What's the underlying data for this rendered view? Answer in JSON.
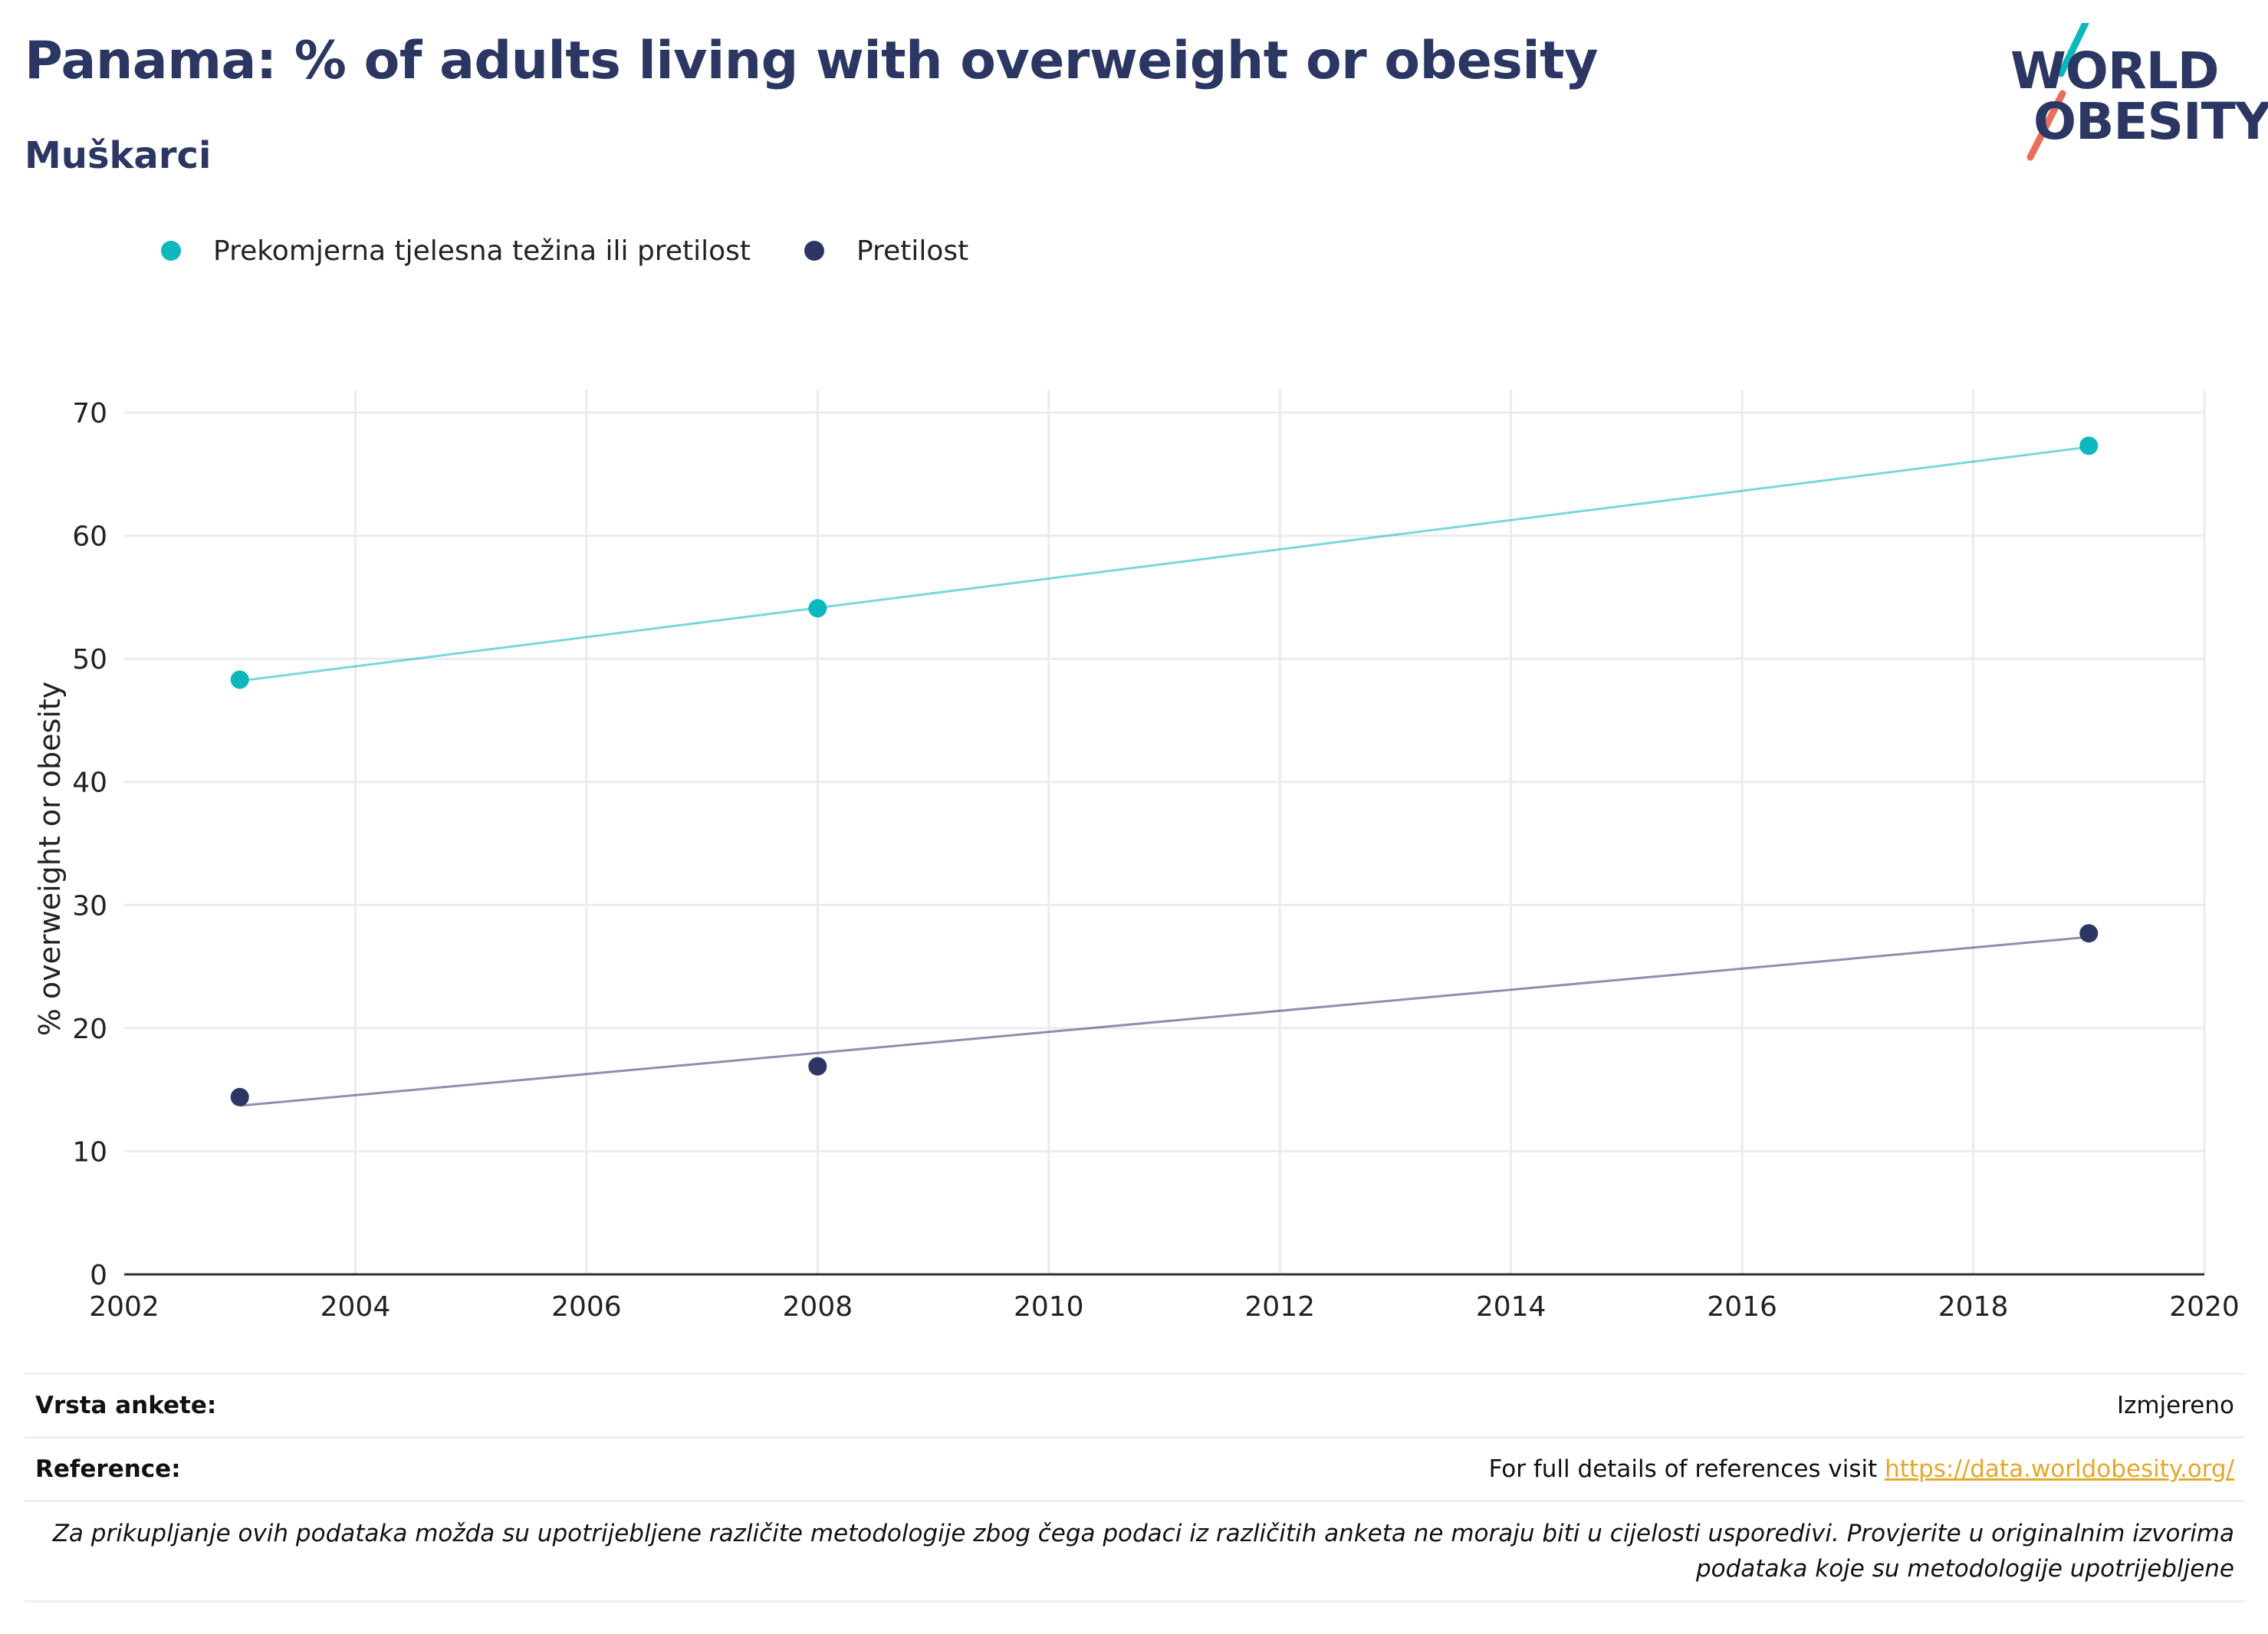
{
  "title": "Panama: % of adults living with overweight or obesity",
  "subtitle": "Muškarci",
  "logo": {
    "line1": "WORLD",
    "line2": "OBESITY"
  },
  "colors": {
    "title": "#2b3762",
    "overweight": "#0cb7bd",
    "obesity": "#2b3762",
    "link": "#e3a82b",
    "grid": "#ebebf0"
  },
  "chart_data": {
    "type": "scatter",
    "ylabel": "% overweight or obesity",
    "xlabel": "",
    "xlim": [
      2002,
      2020
    ],
    "ylim": [
      0,
      70
    ],
    "xticks": [
      2002,
      2004,
      2006,
      2008,
      2010,
      2012,
      2014,
      2016,
      2018,
      2020
    ],
    "yticks": [
      0,
      10,
      20,
      30,
      40,
      50,
      60,
      70
    ],
    "grid": true,
    "legend_position": "top-left",
    "series": [
      {
        "name": "Prekomjerna tjelesna težina ili pretilost",
        "color": "#0cb7bd",
        "points": [
          {
            "x": 2003,
            "y": 48.3
          },
          {
            "x": 2008,
            "y": 54.1
          },
          {
            "x": 2019,
            "y": 67.3
          }
        ],
        "trend": [
          {
            "x": 2003,
            "y": 48.2
          },
          {
            "x": 2019,
            "y": 67.2
          }
        ]
      },
      {
        "name": "Pretilost",
        "color": "#2b3762",
        "points": [
          {
            "x": 2003,
            "y": 14.4
          },
          {
            "x": 2008,
            "y": 16.9
          },
          {
            "x": 2019,
            "y": 27.7
          }
        ],
        "trend": [
          {
            "x": 2003,
            "y": 13.7
          },
          {
            "x": 2019,
            "y": 27.4
          }
        ]
      }
    ]
  },
  "info": {
    "survey_label": "Vrsta ankete:",
    "survey_value": "Izmjereno",
    "reference_label": "Reference:",
    "reference_text": "For full details of references visit ",
    "reference_link": "https://data.worldobesity.org/",
    "note_line1": "Za prikupljanje ovih podataka možda su upotrijebljene različite metodologije zbog čega podaci iz različitih anketa ne moraju biti u cijelosti usporedivi. Provjerite u originalnim izvorima",
    "note_line2": "podataka koje su metodologije upotrijebljene"
  }
}
